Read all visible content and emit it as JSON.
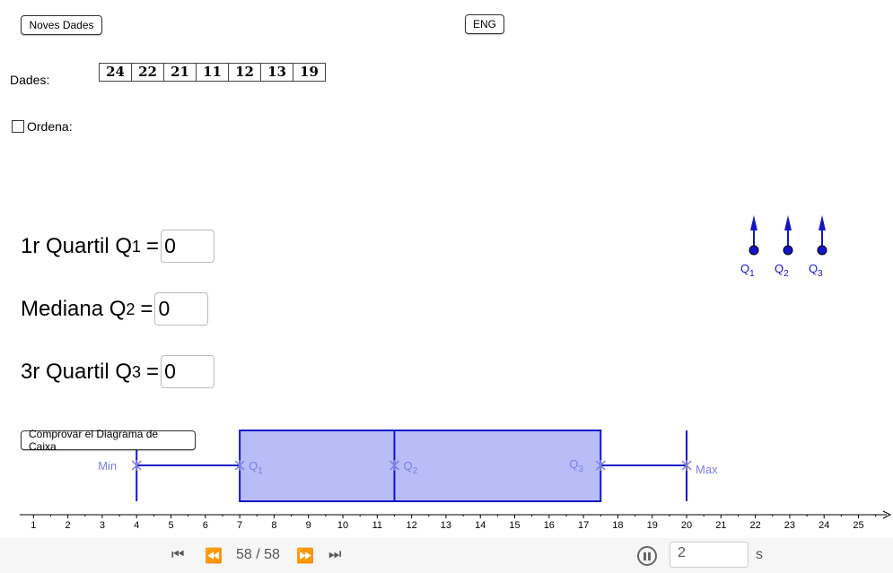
{
  "buttons": {
    "new_data": "Noves Dades",
    "language": "ENG",
    "check_box_plot": "Comprovar el Diagrama de Caixa"
  },
  "data_label": "Dades:",
  "data_values": [
    "24",
    "22",
    "21",
    "11",
    "12",
    "13",
    "19"
  ],
  "sort_checkbox": {
    "label": "Ordena:",
    "checked": false
  },
  "quartiles": {
    "q1": {
      "label": "1r Quartil Q",
      "sub": "1",
      "eq": "=",
      "value": "0"
    },
    "q2": {
      "label": "Mediana Q",
      "sub": "2",
      "eq": "=",
      "value": "0"
    },
    "q3": {
      "label": "3r Quartil Q",
      "sub": "3",
      "eq": "=",
      "value": "0"
    }
  },
  "handles": [
    {
      "label": "Q",
      "sub": "1"
    },
    {
      "label": "Q",
      "sub": "2"
    },
    {
      "label": "Q",
      "sub": "3"
    }
  ],
  "chart_data": {
    "type": "boxplot",
    "min": 4,
    "q1": 7,
    "median": 11.5,
    "q3": 17.5,
    "max": 20,
    "marker_labels": {
      "min": "Min",
      "q1": "Q",
      "q1_sub": "1",
      "median": "Q",
      "median_sub": "2",
      "q3": "Q",
      "q3_sub": "3",
      "max": "Max"
    },
    "xlim": [
      0.6,
      26
    ],
    "x_ticks": [
      1,
      2,
      3,
      4,
      5,
      6,
      7,
      8,
      9,
      10,
      11,
      12,
      13,
      14,
      15,
      16,
      17,
      18,
      19,
      20,
      21,
      22,
      23,
      24,
      25
    ],
    "colors": {
      "line": "#1515c8",
      "fill": "#b8bcf7",
      "marker": "#7b7fe8"
    }
  },
  "animation": {
    "frame_label": "58 / 58",
    "step_value": "2",
    "step_unit": "s"
  }
}
